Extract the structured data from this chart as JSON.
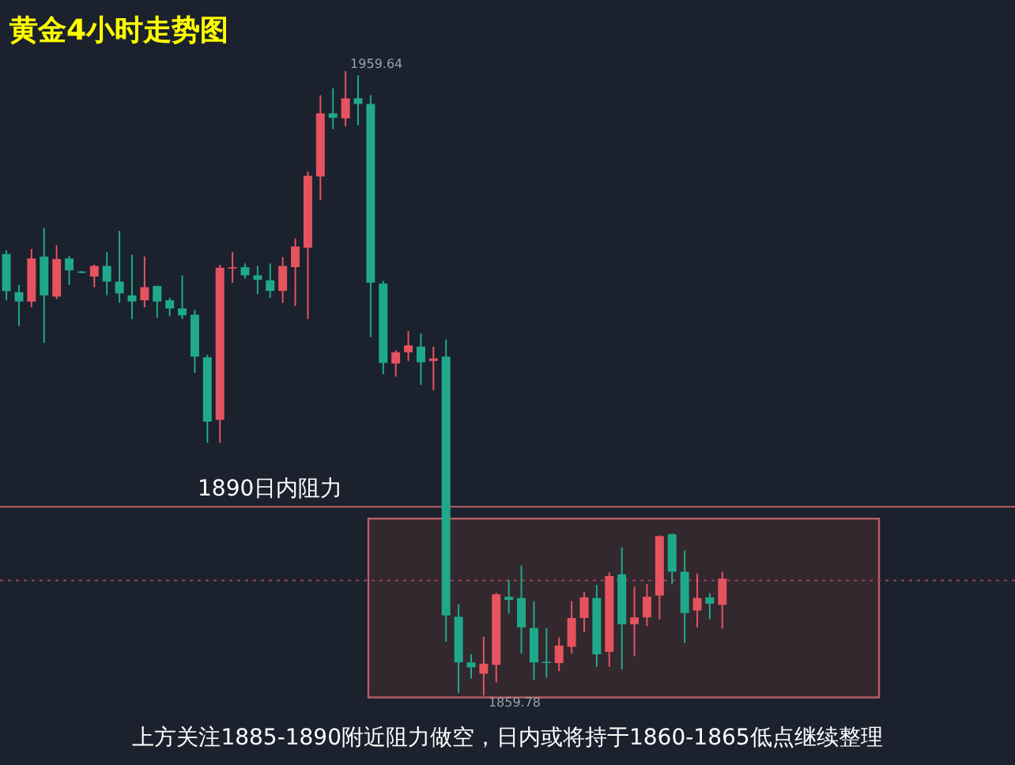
{
  "chart_data": {
    "type": "candlestick",
    "title": "黄金4小时走势图",
    "annotations": [
      "上方关注1885-1890附近阻力做空，日内或将持于1860-1865低点继续整理",
      "1959.64",
      "1859.78"
    ],
    "categories": [
      null,
      null,
      null,
      null,
      null,
      null,
      null,
      null,
      null,
      null,
      null,
      null,
      null,
      null,
      null,
      null,
      null,
      null,
      null,
      null,
      null,
      null,
      null,
      null,
      null,
      null,
      null,
      null,
      null,
      null,
      null,
      null,
      null,
      null,
      null,
      null,
      null,
      null,
      null,
      null,
      null,
      null,
      null,
      null,
      null,
      null,
      null,
      null,
      null,
      null,
      null,
      null,
      null,
      null,
      null,
      null,
      null,
      null
    ],
    "ohlc": [
      [
        1930.4,
        1931.0,
        1923.0,
        1924.5
      ],
      [
        1924.3,
        1925.5,
        1918.9,
        1922.8
      ],
      [
        1922.8,
        1931.2,
        1921.9,
        1929.7
      ],
      [
        1930.0,
        1934.6,
        1916.2,
        1923.8
      ],
      [
        1923.6,
        1931.8,
        1923.2,
        1929.6
      ],
      [
        1929.7,
        1930.1,
        1925.5,
        1927.8
      ],
      [
        1927.6,
        1927.7,
        1927.3,
        1927.4
      ],
      [
        1926.8,
        1928.7,
        1925.1,
        1928.5
      ],
      [
        1928.5,
        1930.7,
        1923.8,
        1926.0
      ],
      [
        1926.0,
        1934.1,
        1922.6,
        1924.1
      ],
      [
        1923.8,
        1930.3,
        1920.0,
        1922.8
      ],
      [
        1923.0,
        1930.0,
        1921.9,
        1925.1
      ],
      [
        1925.3,
        1925.3,
        1920.2,
        1922.8
      ],
      [
        1923.0,
        1923.4,
        1920.5,
        1921.7
      ],
      [
        1921.7,
        1927.0,
        1920.0,
        1920.6
      ],
      [
        1920.7,
        1921.5,
        1911.4,
        1914.0
      ],
      [
        1913.9,
        1914.3,
        1900.2,
        1903.6
      ],
      [
        1903.9,
        1928.7,
        1900.2,
        1928.2
      ],
      [
        1928.1,
        1930.7,
        1925.8,
        1928.3
      ],
      [
        1928.3,
        1928.9,
        1926.5,
        1927.0
      ],
      [
        1927.0,
        1928.5,
        1924.0,
        1926.3
      ],
      [
        1926.2,
        1928.9,
        1923.4,
        1924.5
      ],
      [
        1924.5,
        1929.9,
        1922.6,
        1928.5
      ],
      [
        1928.3,
        1932.9,
        1922.1,
        1931.6
      ],
      [
        1931.4,
        1943.6,
        1920.0,
        1942.9
      ],
      [
        1942.8,
        1955.8,
        1939.0,
        1952.9
      ],
      [
        1952.9,
        1956.9,
        1950.4,
        1952.2
      ],
      [
        1952.1,
        1959.64,
        1950.8,
        1955.3
      ],
      [
        1955.3,
        1959.0,
        1951.0,
        1954.4
      ],
      [
        1954.4,
        1955.8,
        1917.1,
        1925.8
      ],
      [
        1925.7,
        1926.1,
        1911.2,
        1913.0
      ],
      [
        1912.9,
        1915.0,
        1910.8,
        1914.7
      ],
      [
        1914.7,
        1918.1,
        1913.3,
        1915.8
      ],
      [
        1915.6,
        1917.7,
        1909.5,
        1913.1
      ],
      [
        1913.3,
        1915.6,
        1908.6,
        1913.7
      ],
      [
        1914.0,
        1916.7,
        1868.4,
        1872.6
      ],
      [
        1872.4,
        1874.4,
        1860.2,
        1865.1
      ],
      [
        1865.1,
        1866.4,
        1862.5,
        1864.3
      ],
      [
        1863.3,
        1869.2,
        1859.78,
        1864.9
      ],
      [
        1864.7,
        1876.2,
        1861.9,
        1876.0
      ],
      [
        1875.6,
        1878.3,
        1872.9,
        1875.1
      ],
      [
        1875.4,
        1880.6,
        1866.5,
        1870.7
      ],
      [
        1870.6,
        1874.9,
        1862.3,
        1865.1
      ],
      [
        1865.2,
        1870.6,
        1862.7,
        1865.0
      ],
      [
        1865.0,
        1869.1,
        1863.7,
        1867.8
      ],
      [
        1867.6,
        1874.9,
        1866.5,
        1872.2
      ],
      [
        1872.2,
        1876.4,
        1869.9,
        1875.5
      ],
      [
        1875.4,
        1877.5,
        1864.4,
        1866.4
      ],
      [
        1866.8,
        1879.5,
        1864.4,
        1878.9
      ],
      [
        1879.2,
        1883.5,
        1864.0,
        1871.2
      ],
      [
        1871.2,
        1877.2,
        1866.1,
        1872.3
      ],
      [
        1872.3,
        1877.6,
        1870.9,
        1875.6
      ],
      [
        1875.8,
        1885.4,
        1872.0,
        1885.3
      ],
      [
        1885.6,
        1885.7,
        1877.6,
        1879.6
      ],
      [
        1879.6,
        1883.0,
        1868.2,
        1873.0
      ],
      [
        1873.4,
        1879.3,
        1870.7,
        1875.4
      ],
      [
        1875.5,
        1876.2,
        1872.0,
        1874.5
      ],
      [
        1874.3,
        1879.6,
        1870.5,
        1878.5
      ]
    ],
    "colors": [
      "#1fa98a",
      "#1fa98a",
      "#e5535f",
      "#1fa98a",
      "#e5535f",
      "#1fa98a",
      "#1fa98a",
      "#e5535f",
      "#1fa98a",
      "#1fa98a",
      "#1fa98a",
      "#e5535f",
      "#1fa98a",
      "#1fa98a",
      "#1fa98a",
      "#1fa98a",
      "#1fa98a",
      "#e5535f",
      "#e5535f",
      "#1fa98a",
      "#1fa98a",
      "#1fa98a",
      "#e5535f",
      "#e5535f",
      "#e5535f",
      "#e5535f",
      "#1fa98a",
      "#e5535f",
      "#1fa98a",
      "#1fa98a",
      "#1fa98a",
      "#e5535f",
      "#e5535f",
      "#1fa98a",
      "#e5535f",
      "#1fa98a",
      "#1fa98a",
      "#1fa98a",
      "#e5535f",
      "#e5535f",
      "#1fa98a",
      "#1fa98a",
      "#1fa98a",
      "#1fa98a",
      "#e5535f",
      "#e5535f",
      "#e5535f",
      "#1fa98a",
      "#e5535f",
      "#1fa98a",
      "#e5535f",
      "#e5535f",
      "#e5535f",
      "#1fa98a",
      "#1fa98a",
      "#e5535f",
      "#1fa98a",
      "#e5535f"
    ],
    "ref_lines": [
      {
        "axis": "y",
        "value": 1890,
        "label": "1890日内阻力",
        "color": "#c0606a",
        "line_style": "solid"
      },
      {
        "axis": "y",
        "value": 1878.2,
        "color": "#a04050",
        "line_style": "dotted"
      }
    ],
    "bands": [
      {
        "axis": "y",
        "from": 1859.5,
        "to": 1888.1,
        "color": "#c0606a"
      }
    ]
  }
}
